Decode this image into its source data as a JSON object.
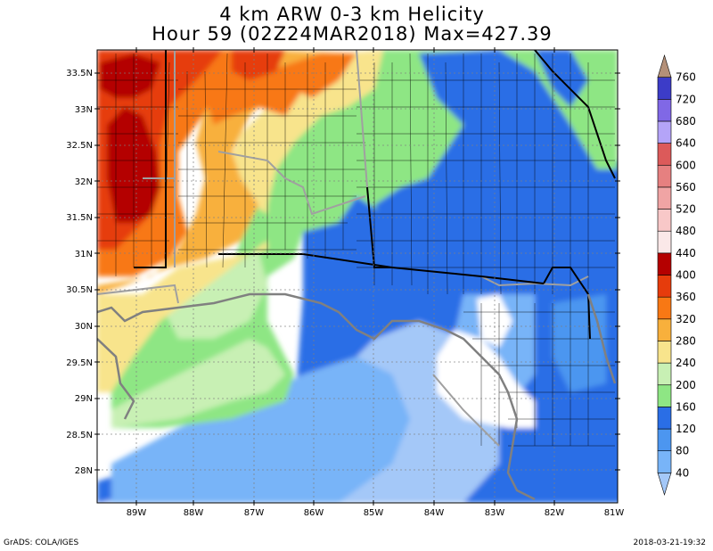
{
  "title": {
    "line1": "4 km ARW 0-3 km Helicity",
    "line2": "Hour 59 (02Z24MAR2018) Max=427.39"
  },
  "map": {
    "lat_labels": [
      "33.5N",
      "33N",
      "32.5N",
      "32N",
      "31.5N",
      "31N",
      "30.5N",
      "30N",
      "29.5N",
      "29N",
      "28.5N",
      "28N"
    ],
    "lon_labels": [
      "89W",
      "88W",
      "87W",
      "86W",
      "85W",
      "84W",
      "83W",
      "82W",
      "81W"
    ]
  },
  "colorbar": {
    "levels": [
      "40",
      "80",
      "120",
      "160",
      "200",
      "240",
      "280",
      "320",
      "360",
      "400",
      "440",
      "480",
      "520",
      "560",
      "600",
      "640",
      "680",
      "720",
      "760"
    ],
    "colors": [
      "#a4c8f8",
      "#78b4f8",
      "#4c96f0",
      "#2a6ee6",
      "#8ee684",
      "#c8f0b4",
      "#f8e48c",
      "#f8b03c",
      "#f87814",
      "#e63c0c",
      "#b40000",
      "#fae8e8",
      "#f8c8c8",
      "#f0a4a4",
      "#e68080",
      "#dc5a5a",
      "#b4a4f8",
      "#8068e6",
      "#3c3cc8",
      "#b49078"
    ]
  },
  "footer": {
    "left": "GrADS: COLA/IGES",
    "right": "2018-03-21-19:32"
  }
}
